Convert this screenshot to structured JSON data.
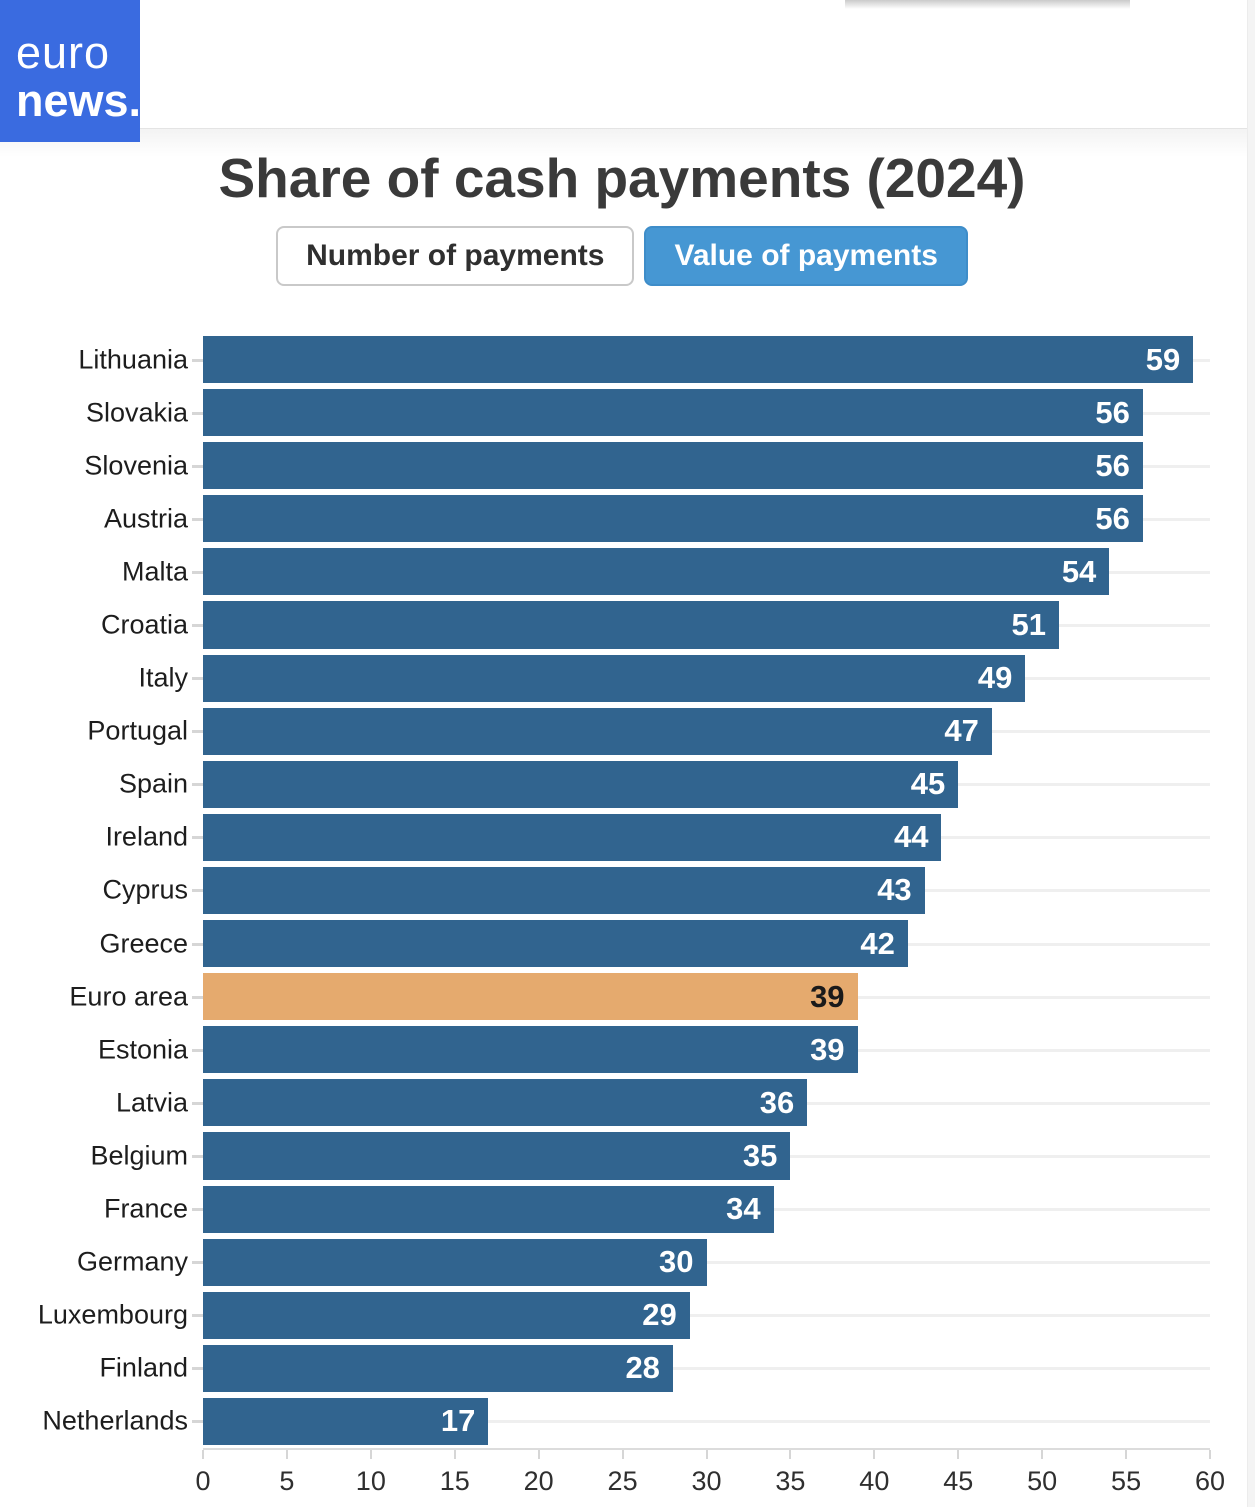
{
  "logo": {
    "line1": "euro",
    "line2": "news."
  },
  "title": "Share of cash payments (2024)",
  "toggle": {
    "inactive_label": "Number of payments",
    "active_label": "Value of payments"
  },
  "colors": {
    "logo_bg": "#3a6be0",
    "bar": "#31648f",
    "highlight_bar": "#e5aa6e",
    "active_button_bg": "#4697d3",
    "value_label": "#ffffff",
    "highlight_value_label": "#1a1a1a"
  },
  "chart_data": {
    "type": "bar",
    "orientation": "horizontal",
    "title": "Share of cash payments (2024)",
    "categories": [
      "Lithuania",
      "Slovakia",
      "Slovenia",
      "Austria",
      "Malta",
      "Croatia",
      "Italy",
      "Portugal",
      "Spain",
      "Ireland",
      "Cyprus",
      "Greece",
      "Euro area",
      "Estonia",
      "Latvia",
      "Belgium",
      "France",
      "Germany",
      "Luxembourg",
      "Finland",
      "Netherlands"
    ],
    "values": [
      59,
      56,
      56,
      56,
      54,
      51,
      49,
      47,
      45,
      44,
      43,
      42,
      39,
      39,
      36,
      35,
      34,
      30,
      29,
      28,
      17
    ],
    "highlight_category": "Euro area",
    "xlabel": "",
    "ylabel": "",
    "xlim": [
      0,
      60
    ],
    "x_ticks": [
      0,
      5,
      10,
      15,
      20,
      25,
      30,
      35,
      40,
      45,
      50,
      55,
      60
    ],
    "grid": "horizontal-per-category",
    "value_labels": "inside-end",
    "legend": "none"
  }
}
